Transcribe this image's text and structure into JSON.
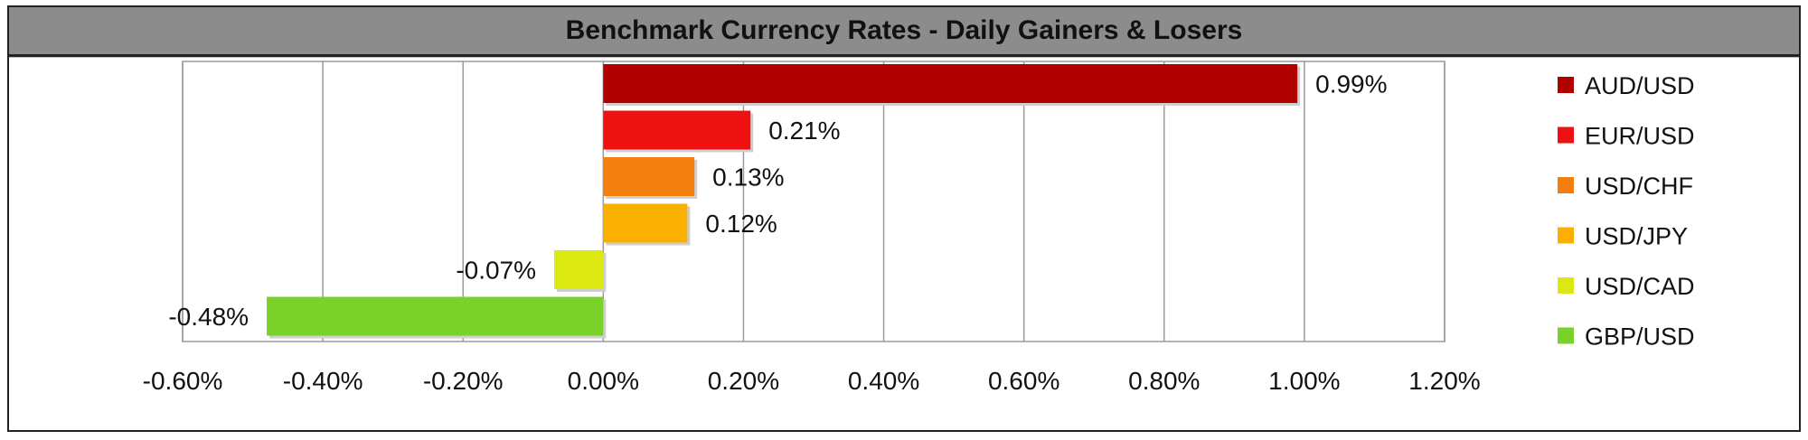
{
  "chart_data": {
    "type": "bar",
    "orientation": "horizontal",
    "title": "Benchmark Currency Rates - Daily Gainers & Losers",
    "categories": [
      "AUD/USD",
      "EUR/USD",
      "USD/CHF",
      "USD/JPY",
      "USD/CAD",
      "GBP/USD"
    ],
    "values": [
      0.99,
      0.21,
      0.13,
      0.12,
      -0.07,
      -0.48
    ],
    "data_labels": [
      "0.99%",
      "0.21%",
      "0.13%",
      "0.12%",
      "-0.07%",
      "-0.48%"
    ],
    "colors": [
      "#b00000",
      "#ee1111",
      "#f57f0e",
      "#f9b000",
      "#dbe812",
      "#7ad12a"
    ],
    "xlim": [
      -0.6,
      1.2
    ],
    "x_ticks": [
      -0.6,
      -0.4,
      -0.2,
      0.0,
      0.2,
      0.4,
      0.6,
      0.8,
      1.0,
      1.2
    ],
    "x_tick_labels": [
      "-0.60%",
      "-0.40%",
      "-0.20%",
      "0.00%",
      "0.20%",
      "0.40%",
      "0.60%",
      "0.80%",
      "1.00%",
      "1.20%"
    ],
    "grid": "vertical",
    "legend_position": "right",
    "xlabel": "",
    "ylabel": ""
  }
}
